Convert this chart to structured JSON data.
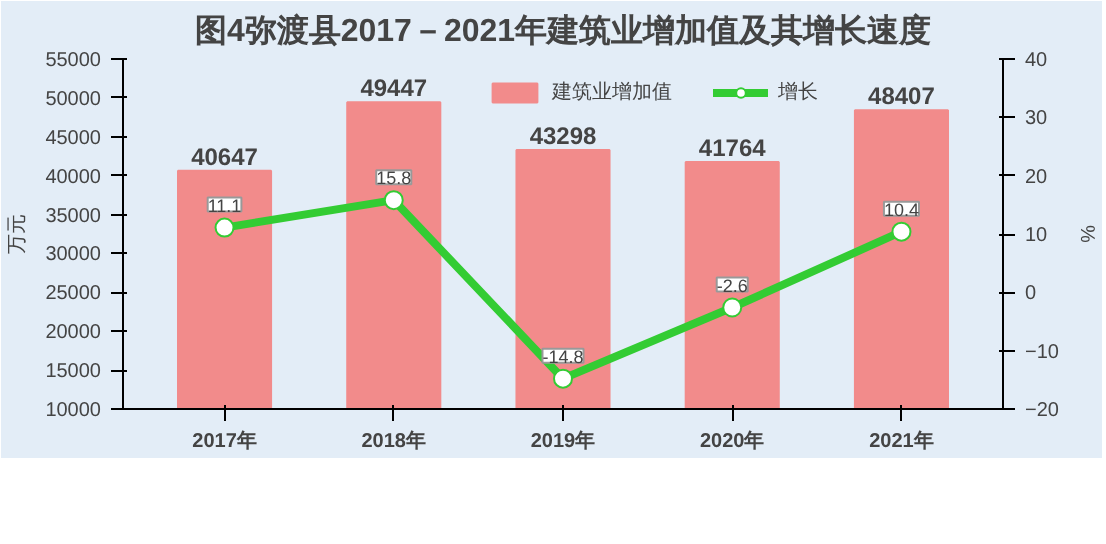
{
  "chart_data": {
    "type": "bar",
    "title": "图4弥渡县2017－2021年建筑业增加值及其增长速度",
    "ylabel": "万元",
    "y2label": "%",
    "categories": [
      "2017年",
      "2018年",
      "2019年",
      "2020年",
      "2021年"
    ],
    "series": [
      {
        "name": "建筑业增加值",
        "type": "bar",
        "color": "#f28b8b",
        "values": [
          40647,
          49447,
          43298,
          41764,
          48407
        ]
      },
      {
        "name": "增长",
        "type": "line",
        "axis": "y2",
        "color": "#33cc33",
        "values": [
          11.1,
          15.8,
          -14.8,
          -2.6,
          10.4
        ]
      }
    ],
    "ylim": [
      10000,
      55000
    ],
    "yticks": [
      10000,
      15000,
      20000,
      25000,
      30000,
      35000,
      40000,
      45000,
      50000,
      55000
    ],
    "y2lim": [
      -20,
      40
    ],
    "y2ticks": [
      -20,
      -10,
      0,
      10,
      20,
      30,
      40
    ],
    "data_labels": true,
    "legend": "top",
    "marker": "circle",
    "grid": false
  }
}
